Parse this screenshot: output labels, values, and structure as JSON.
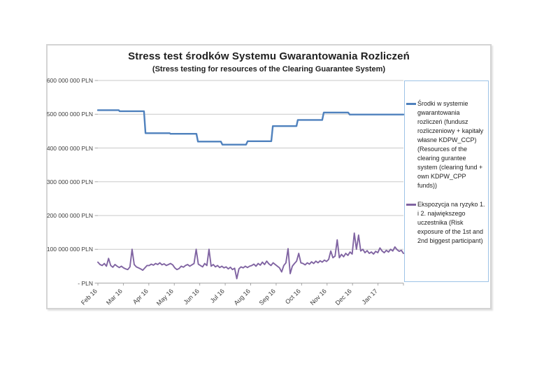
{
  "chart_data": {
    "type": "line",
    "title": "Stress test środków Systemu Gwarantowania Rozliczeń",
    "subtitle": "(Stress testing for resources of the Clearing Guarantee System)",
    "legend_position": "right",
    "grid": true,
    "y_axis": {
      "unit": "PLN",
      "min": 0,
      "max": 600000000,
      "ticks": [
        {
          "value_million": 600,
          "label": "600 000 000 PLN"
        },
        {
          "value_million": 500,
          "label": "500 000 000 PLN"
        },
        {
          "value_million": 400,
          "label": "400 000 000 PLN"
        },
        {
          "value_million": 300,
          "label": "300 000 000 PLN"
        },
        {
          "value_million": 200,
          "label": "200 000 000 PLN"
        },
        {
          "value_million": 100,
          "label": "100 000 000 PLN"
        },
        {
          "value_million": 0,
          "label": "- PLN"
        }
      ]
    },
    "x_axis": {
      "tick_labels": [
        "Feb 16",
        "Mar 16",
        "Apr 16",
        "May 16",
        "Jun 16",
        "Jul 16",
        "Aug 16",
        "Sep 16",
        "Oct 16",
        "Nov 16",
        "Dec 16",
        "Jan 17"
      ]
    },
    "series": [
      {
        "name": "Środki w systemie gwarantowania rozliczeń (fundusz rozliczeniowy + kapitały własne KDPW_CCP) (Resources of the clearing gurantee system (clearing fund + own KDPW_CPP funds))",
        "color": "#4F81BD",
        "style": "step",
        "points_month_valueMillionPLN": [
          [
            0,
            512
          ],
          [
            0.82,
            512
          ],
          [
            0.85,
            509
          ],
          [
            1.81,
            509
          ],
          [
            1.87,
            444
          ],
          [
            2.82,
            444
          ],
          [
            2.85,
            442
          ],
          [
            3.87,
            442
          ],
          [
            3.93,
            419
          ],
          [
            4.83,
            419
          ],
          [
            4.89,
            410
          ],
          [
            5.82,
            410
          ],
          [
            5.88,
            420
          ],
          [
            6.81,
            420
          ],
          [
            6.87,
            465
          ],
          [
            7.8,
            465
          ],
          [
            7.85,
            483
          ],
          [
            8.81,
            483
          ],
          [
            8.87,
            505
          ],
          [
            9.83,
            505
          ],
          [
            9.89,
            499
          ],
          [
            12,
            499
          ]
        ]
      },
      {
        "name": "Ekspozycja na ryzyko 1. i 2. największego uczestnika (Risk exposure of the 1st and 2nd biggest participant)",
        "color": "#8064A2",
        "style": "line",
        "valuesMillionPLN": [
          62,
          55,
          52,
          58,
          50,
          73,
          52,
          47,
          55,
          50,
          46,
          50,
          45,
          42,
          40,
          48,
          100,
          55,
          48,
          45,
          42,
          38,
          45,
          52,
          52,
          56,
          53,
          58,
          55,
          60,
          54,
          57,
          52,
          55,
          58,
          54,
          45,
          40,
          43,
          50,
          47,
          52,
          55,
          50,
          54,
          58,
          100,
          56,
          52,
          48,
          58,
          52,
          100,
          50,
          55,
          48,
          52,
          46,
          50,
          45,
          48,
          42,
          47,
          40,
          44,
          13,
          42,
          48,
          45,
          50,
          46,
          50,
          52,
          56,
          50,
          58,
          53,
          62,
          55,
          65,
          57,
          52,
          60,
          55,
          50,
          45,
          33,
          52,
          60,
          102,
          28,
          50,
          58,
          65,
          88,
          60,
          58,
          54,
          60,
          56,
          63,
          58,
          65,
          60,
          66,
          62,
          68,
          64,
          70,
          95,
          75,
          80,
          128,
          75,
          85,
          78,
          88,
          82,
          92,
          86,
          148,
          100,
          142,
          95,
          100,
          90,
          96,
          88,
          92,
          86,
          94,
          90,
          104,
          95,
          90,
          97,
          92,
          100,
          95,
          107,
          99,
          94,
          97,
          88
        ]
      }
    ]
  },
  "colors": {
    "series1": "#4F81BD",
    "series2": "#8064A2",
    "gridline": "#c9c9c9",
    "axis": "#a6a6a6",
    "legend_border": "#9DC3E6",
    "chart_border": "#d4d4d4",
    "text": "#3b3b3b"
  }
}
